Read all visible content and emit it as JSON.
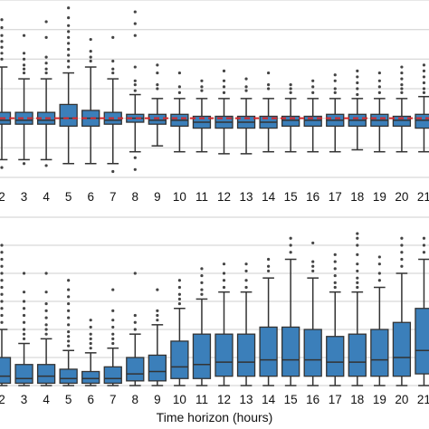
{
  "chart_data": [
    {
      "type": "box",
      "panel": "top",
      "categories": [
        "2",
        "3",
        "4",
        "5",
        "6",
        "7",
        "8",
        "9",
        "10",
        "11",
        "12",
        "13",
        "14",
        "15",
        "16",
        "17",
        "18",
        "19",
        "20",
        "21"
      ],
      "xlabel": "",
      "ylabel": "",
      "reference_line": {
        "style": "dashed",
        "color": "#d62728",
        "value": 0.0
      },
      "ylim": [
        -1.5,
        3.0
      ],
      "grid": true,
      "boxes": [
        {
          "q1": -0.15,
          "median": -0.05,
          "q3": 0.15,
          "whisker_low": -1.05,
          "whisker_high": 1.3,
          "outliers_high": [
            1.5,
            1.65,
            1.8,
            1.95,
            2.1,
            2.3,
            2.5
          ],
          "outliers_low": [
            -1.25
          ]
        },
        {
          "q1": -0.15,
          "median": -0.05,
          "q3": 0.15,
          "whisker_low": -1.05,
          "whisker_high": 1.0,
          "outliers_high": [
            1.15,
            1.25,
            1.35,
            1.5,
            1.65,
            2.1
          ],
          "outliers_low": [
            -1.15
          ]
        },
        {
          "q1": -0.15,
          "median": -0.05,
          "q3": 0.15,
          "whisker_low": -1.05,
          "whisker_high": 1.0,
          "outliers_high": [
            1.15,
            1.25,
            1.4,
            1.55,
            2.05,
            2.45
          ],
          "outliers_low": [
            -1.2
          ]
        },
        {
          "q1": -0.2,
          "median": 0.0,
          "q3": 0.35,
          "whisker_low": -1.15,
          "whisker_high": 1.15,
          "outliers_high": [
            1.3,
            1.45,
            1.6,
            1.75,
            1.9,
            2.05,
            2.2,
            2.35,
            2.55,
            2.8
          ],
          "outliers_low": []
        },
        {
          "q1": -0.2,
          "median": 0.0,
          "q3": 0.2,
          "whisker_low": -1.15,
          "whisker_high": 1.3,
          "outliers_high": [
            1.45,
            1.55,
            1.7,
            2.0
          ],
          "outliers_low": []
        },
        {
          "q1": -0.15,
          "median": -0.05,
          "q3": 0.15,
          "whisker_low": -1.15,
          "whisker_high": 1.0,
          "outliers_high": [
            1.15,
            1.25,
            1.45,
            2.05
          ],
          "outliers_low": [
            -1.35
          ]
        },
        {
          "q1": -0.1,
          "median": 0.0,
          "q3": 0.1,
          "whisker_low": -0.85,
          "whisker_high": 0.6,
          "outliers_high": [
            0.7,
            0.85,
            0.95,
            1.3,
            2.1,
            2.4,
            2.7
          ],
          "outliers_low": [
            -1.0,
            -1.3
          ]
        },
        {
          "q1": -0.15,
          "median": -0.05,
          "q3": 0.1,
          "whisker_low": -0.7,
          "whisker_high": 0.5,
          "outliers_high": [
            0.75,
            0.85,
            1.15,
            1.35
          ],
          "outliers_low": []
        },
        {
          "q1": -0.2,
          "median": -0.05,
          "q3": 0.1,
          "whisker_low": -0.85,
          "whisker_high": 0.5,
          "outliers_high": [
            0.65,
            0.8,
            1.15
          ],
          "outliers_low": []
        },
        {
          "q1": -0.25,
          "median": -0.1,
          "q3": 0.05,
          "whisker_low": -0.85,
          "whisker_high": 0.5,
          "outliers_high": [
            0.7,
            0.8,
            0.95
          ],
          "outliers_low": []
        },
        {
          "q1": -0.25,
          "median": -0.1,
          "q3": 0.05,
          "whisker_low": -0.9,
          "whisker_high": 0.5,
          "outliers_high": [
            0.65,
            0.8,
            0.95,
            1.2
          ],
          "outliers_low": []
        },
        {
          "q1": -0.25,
          "median": -0.1,
          "q3": 0.05,
          "whisker_low": -0.9,
          "whisker_high": 0.5,
          "outliers_high": [
            0.7,
            0.8,
            1.0
          ],
          "outliers_low": []
        },
        {
          "q1": -0.25,
          "median": -0.1,
          "q3": 0.05,
          "whisker_low": -0.85,
          "whisker_high": 0.5,
          "outliers_high": [
            0.75,
            0.85,
            1.15
          ],
          "outliers_low": []
        },
        {
          "q1": -0.2,
          "median": -0.05,
          "q3": 0.05,
          "whisker_low": -0.85,
          "whisker_high": 0.5,
          "outliers_high": [
            0.65,
            0.75,
            0.85
          ],
          "outliers_low": []
        },
        {
          "q1": -0.2,
          "median": -0.05,
          "q3": 0.05,
          "whisker_low": -0.85,
          "whisker_high": 0.5,
          "outliers_high": [
            0.65,
            0.8,
            0.95
          ],
          "outliers_low": []
        },
        {
          "q1": -0.2,
          "median": -0.05,
          "q3": 0.1,
          "whisker_low": -0.85,
          "whisker_high": 0.5,
          "outliers_high": [
            0.65,
            0.75,
            0.95,
            1.1
          ],
          "outliers_low": []
        },
        {
          "q1": -0.2,
          "median": -0.05,
          "q3": 0.1,
          "whisker_low": -0.8,
          "whisker_high": 0.5,
          "outliers_high": [
            0.6,
            0.75,
            0.9,
            1.05,
            1.2
          ],
          "outliers_low": []
        },
        {
          "q1": -0.2,
          "median": -0.05,
          "q3": 0.1,
          "whisker_low": -0.85,
          "whisker_high": 0.5,
          "outliers_high": [
            0.65,
            0.8,
            0.95,
            1.15
          ],
          "outliers_low": []
        },
        {
          "q1": -0.2,
          "median": -0.05,
          "q3": 0.05,
          "whisker_low": -0.85,
          "whisker_high": 0.5,
          "outliers_high": [
            0.65,
            0.75,
            0.85,
            1.0,
            1.15,
            1.3
          ],
          "outliers_low": []
        },
        {
          "q1": -0.25,
          "median": -0.05,
          "q3": 0.1,
          "whisker_low": -0.85,
          "whisker_high": 0.55,
          "outliers_high": [
            0.65,
            0.75,
            0.9,
            1.05,
            1.2,
            1.35
          ],
          "outliers_low": []
        }
      ]
    },
    {
      "type": "box",
      "panel": "bottom",
      "categories": [
        "2",
        "3",
        "4",
        "5",
        "6",
        "7",
        "8",
        "9",
        "10",
        "11",
        "12",
        "13",
        "14",
        "15",
        "16",
        "17",
        "18",
        "19",
        "20",
        "21"
      ],
      "xlabel": "Time horizon (hours)",
      "ylabel": "",
      "ylim": [
        0.0,
        3.6
      ],
      "grid": true,
      "boxes": [
        {
          "q1": 0.05,
          "median": 0.2,
          "q3": 0.6,
          "whisker_low": 0.0,
          "whisker_high": 1.2,
          "outliers_high": [
            1.35,
            1.5,
            1.65,
            1.8,
            1.95,
            2.1,
            2.25,
            2.4,
            2.55,
            2.7,
            2.85,
            3.0
          ],
          "outliers_low": []
        },
        {
          "q1": 0.05,
          "median": 0.15,
          "q3": 0.45,
          "whisker_low": 0.0,
          "whisker_high": 0.9,
          "outliers_high": [
            1.0,
            1.1,
            1.2,
            1.35,
            1.5,
            1.65,
            1.8,
            2.0,
            2.4
          ],
          "outliers_low": []
        },
        {
          "q1": 0.05,
          "median": 0.2,
          "q3": 0.45,
          "whisker_low": 0.0,
          "whisker_high": 1.0,
          "outliers_high": [
            1.1,
            1.2,
            1.3,
            1.45,
            1.6,
            1.75,
            2.0,
            2.4
          ],
          "outliers_low": []
        },
        {
          "q1": 0.05,
          "median": 0.15,
          "q3": 0.35,
          "whisker_low": 0.0,
          "whisker_high": 0.75,
          "outliers_high": [
            0.85,
            0.95,
            1.05,
            1.15,
            1.3,
            1.45,
            1.6,
            1.75,
            1.9,
            2.05,
            2.25
          ],
          "outliers_low": []
        },
        {
          "q1": 0.05,
          "median": 0.15,
          "q3": 0.3,
          "whisker_low": 0.0,
          "whisker_high": 0.7,
          "outliers_high": [
            0.8,
            0.9,
            1.0,
            1.1,
            1.25,
            1.4
          ],
          "outliers_low": []
        },
        {
          "q1": 0.05,
          "median": 0.15,
          "q3": 0.4,
          "whisker_low": 0.0,
          "whisker_high": 0.8,
          "outliers_high": [
            0.9,
            1.0,
            1.1,
            1.25,
            1.4,
            1.6,
            2.05
          ],
          "outliers_low": []
        },
        {
          "q1": 0.1,
          "median": 0.25,
          "q3": 0.6,
          "whisker_low": 0.0,
          "whisker_high": 1.1,
          "outliers_high": [
            1.2,
            1.35,
            1.5,
            2.4
          ],
          "outliers_low": []
        },
        {
          "q1": 0.1,
          "median": 0.3,
          "q3": 0.65,
          "whisker_low": 0.0,
          "whisker_high": 1.3,
          "outliers_high": [
            1.4,
            1.5,
            1.6,
            2.05
          ],
          "outliers_low": []
        },
        {
          "q1": 0.15,
          "median": 0.4,
          "q3": 0.95,
          "whisker_low": 0.0,
          "whisker_high": 1.65,
          "outliers_high": [
            1.75,
            1.85,
            1.95,
            2.1,
            2.25
          ],
          "outliers_low": []
        },
        {
          "q1": 0.15,
          "median": 0.45,
          "q3": 1.1,
          "whisker_low": 0.0,
          "whisker_high": 1.85,
          "outliers_high": [
            1.95,
            2.05,
            2.2,
            2.35,
            2.5
          ],
          "outliers_low": []
        },
        {
          "q1": 0.2,
          "median": 0.5,
          "q3": 1.1,
          "whisker_low": 0.0,
          "whisker_high": 2.0,
          "outliers_high": [
            2.1,
            2.25,
            2.4,
            2.6
          ],
          "outliers_low": []
        },
        {
          "q1": 0.2,
          "median": 0.5,
          "q3": 1.1,
          "whisker_low": 0.0,
          "whisker_high": 2.0,
          "outliers_high": [
            2.1,
            2.25,
            2.45,
            2.6
          ],
          "outliers_low": []
        },
        {
          "q1": 0.2,
          "median": 0.55,
          "q3": 1.25,
          "whisker_low": 0.0,
          "whisker_high": 2.3,
          "outliers_high": [
            2.45,
            2.55,
            2.7
          ],
          "outliers_low": []
        },
        {
          "q1": 0.2,
          "median": 0.55,
          "q3": 1.25,
          "whisker_low": 0.0,
          "whisker_high": 2.7,
          "outliers_high": [
            2.85,
            3.0,
            3.15
          ],
          "outliers_low": []
        },
        {
          "q1": 0.2,
          "median": 0.55,
          "q3": 1.2,
          "whisker_low": 0.0,
          "whisker_high": 2.3,
          "outliers_high": [
            2.45,
            2.55,
            2.65,
            3.05
          ],
          "outliers_low": []
        },
        {
          "q1": 0.2,
          "median": 0.5,
          "q3": 1.05,
          "whisker_low": 0.0,
          "whisker_high": 2.0,
          "outliers_high": [
            2.1,
            2.2,
            2.35,
            2.5,
            2.65,
            2.8
          ],
          "outliers_low": []
        },
        {
          "q1": 0.2,
          "median": 0.5,
          "q3": 1.1,
          "whisker_low": 0.0,
          "whisker_high": 2.0,
          "outliers_high": [
            2.1,
            2.2,
            2.3,
            2.45,
            2.6,
            2.8,
            3.0,
            3.15,
            3.25
          ],
          "outliers_low": []
        },
        {
          "q1": 0.2,
          "median": 0.55,
          "q3": 1.2,
          "whisker_low": 0.0,
          "whisker_high": 2.1,
          "outliers_high": [
            2.25,
            2.4,
            2.6,
            2.75
          ],
          "outliers_low": []
        },
        {
          "q1": 0.2,
          "median": 0.6,
          "q3": 1.35,
          "whisker_low": 0.0,
          "whisker_high": 2.4,
          "outliers_high": [
            2.55,
            2.7,
            2.85,
            3.0,
            3.15
          ],
          "outliers_low": []
        },
        {
          "q1": 0.25,
          "median": 0.75,
          "q3": 1.65,
          "whisker_low": 0.0,
          "whisker_high": 2.7,
          "outliers_high": [
            2.85,
            3.0,
            3.15
          ],
          "outliers_low": []
        }
      ]
    }
  ],
  "colors": {
    "box_fill": "#3b7fba",
    "box_edge": "#333333",
    "grid": "#cfcfcf",
    "reference_line": "#d62728",
    "outlier": "#444444"
  }
}
